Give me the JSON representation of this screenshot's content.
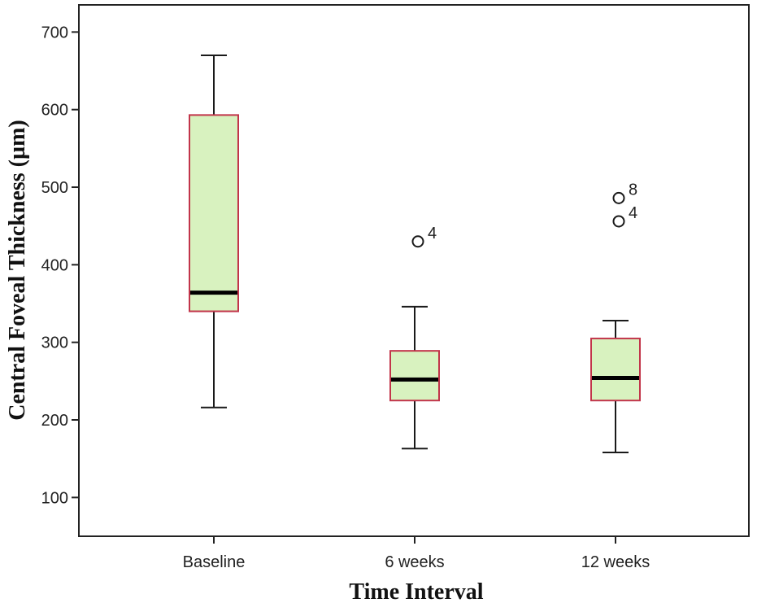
{
  "chart_data": {
    "type": "boxplot",
    "title": "",
    "xlabel": "Time Interval",
    "ylabel": "Central Foveal Thickness (µm)",
    "ylim": [
      50,
      735
    ],
    "yticks": [
      100,
      200,
      300,
      400,
      500,
      600,
      700
    ],
    "yticklabels": [
      "100",
      "200",
      "300",
      "400",
      "500",
      "600",
      "700"
    ],
    "categories": [
      "Baseline",
      "6 weeks",
      "12 weeks"
    ],
    "boxes": [
      {
        "category": "Baseline",
        "whisker_low": 216,
        "q1": 340,
        "median": 364,
        "q3": 593,
        "whisker_high": 670,
        "outliers": []
      },
      {
        "category": "6 weeks",
        "whisker_low": 163,
        "q1": 225,
        "median": 252,
        "q3": 289,
        "whisker_high": 346,
        "outliers": [
          {
            "value": 430,
            "label": "4"
          }
        ]
      },
      {
        "category": "12 weeks",
        "whisker_low": 158,
        "q1": 225,
        "median": 254,
        "q3": 305,
        "whisker_high": 328,
        "outliers": [
          {
            "value": 486,
            "label": "8"
          },
          {
            "value": 456,
            "label": "4"
          }
        ]
      }
    ],
    "colors": {
      "box_fill": "#d8f2bf",
      "box_stroke": "#c2354a",
      "median": "#000000",
      "whisker": "#1a1a1a",
      "frame": "#222222",
      "background": "#ffffff"
    }
  }
}
